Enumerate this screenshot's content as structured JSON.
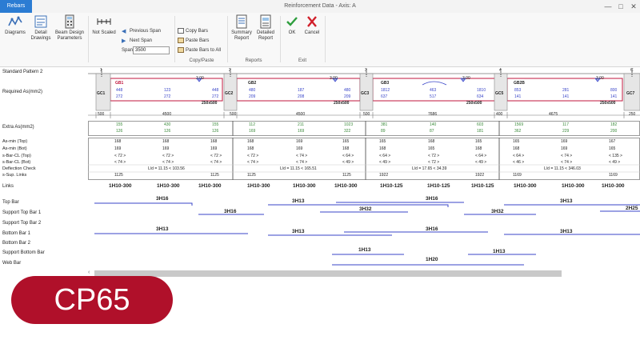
{
  "window": {
    "title": "Reinforcement Data - Axis: A",
    "tab": "Rebars",
    "controls": [
      "—",
      "□",
      "✕"
    ]
  },
  "ribbon": {
    "diagrams": "Diagrams",
    "detail_drawings_1": "Detail",
    "detail_drawings_2": "Drawings",
    "beam_params_1": "Beam Design",
    "beam_params_2": "Parameters",
    "not_scaled": "Not Scaled",
    "previous_span": "Previous Span",
    "next_span": "Next Span",
    "span_label": "Span",
    "span_value": "3500",
    "copy_bars": "Copy Bars",
    "paste_bars": "Paste Bars",
    "paste_bars_all": "Paste Bars to All",
    "copy_paste_group": "Copy/Paste",
    "summary_1": "Summary",
    "summary_2": "Report",
    "detailed_1": "Detailed",
    "detailed_2": "Report",
    "reports_group": "Reports",
    "ok": "OK",
    "cancel": "Cancel",
    "exit_group": "Exit"
  },
  "labels": {
    "pattern": "Standard Pattern 2",
    "required_as": "Required As(mm2)",
    "extra_as": "Extra As(mm2)",
    "as_min_top": "As-min (Top)",
    "as_min_bot": "As-min (Bot)",
    "sbar_top": "s-Bar-CL (Top)",
    "sbar_bot": "s-Bar-CL (Bot)",
    "deflection": "Deflection Check",
    "sup_links": "s-Sup. Links",
    "links": "Links",
    "top_bar": "Top Bar",
    "support_top_1": "Support Top Bar 1",
    "support_top_2": "Support Top Bar 2",
    "bottom_bar_1": "Bottom Bar 1",
    "bottom_bar_2": "Bottom Bar 2",
    "support_bottom": "Support Bottom Bar",
    "web_bar": "Web Bar"
  },
  "gridlines": [
    "1",
    "2",
    "3",
    "4",
    "C"
  ],
  "beams": [
    "GB1",
    "GB2",
    "GB3",
    "GB2B"
  ],
  "columns": [
    "GC1",
    "GC2",
    "GC3",
    "GC5",
    "GC7"
  ],
  "sections": [
    "250x500",
    "250x500",
    "250x500",
    "250x500"
  ],
  "dims": [
    "500",
    "4500",
    "500",
    "4500",
    "500",
    "7686",
    "400",
    "4675",
    "250"
  ],
  "load_marks": [
    "3.00",
    "3.00",
    "3.00",
    "3.00"
  ],
  "req_top": [
    "448",
    "123",
    "448",
    "480",
    "187",
    "480",
    "1812",
    "463",
    "1810",
    "853",
    "281",
    "800"
  ],
  "req_bot": [
    "272",
    "272",
    "272",
    "209",
    "208",
    "209",
    "637",
    "517",
    "634",
    "141",
    "141",
    "141"
  ],
  "extra_top": [
    "155",
    "430",
    "155",
    "112",
    "211",
    "1023",
    "381",
    "140",
    "603",
    "1569",
    "117",
    "182"
  ],
  "extra_bot": [
    "126",
    "126",
    "126",
    "169",
    "169",
    "322",
    "89",
    "87",
    "181",
    "362",
    "229",
    "200"
  ],
  "asmin_top": [
    "168",
    "168",
    "168",
    "168",
    "169",
    "165",
    "165",
    "168",
    "165",
    "165",
    "169",
    "167"
  ],
  "asmin_bot": [
    "169",
    "169",
    "169",
    "168",
    "169",
    "168",
    "168",
    "165",
    "168",
    "168",
    "169",
    "165"
  ],
  "sbar_top": [
    "< 72 >",
    "< 72 >",
    "< 72 >",
    "< 72 >",
    "< 74 >",
    "< 64 >",
    "< 64 >",
    "< 72 >",
    "< 64 >",
    "< 64 >",
    "< 74 >",
    "< 135 >"
  ],
  "sbar_bot": [
    "< 74 >",
    "< 74 >",
    "< 74 >",
    "< 74 >",
    "< 74 >",
    "< 49 >",
    "< 49 >",
    "< 72 >",
    "< 49 >",
    "< 46 >",
    "< 74 >",
    "< 49 >"
  ],
  "deflection_vals": [
    "L/d = 11.15  < 103.56",
    "L/d = 11.15  < 165.51",
    "L/d = 17.65  < 34.39",
    "L/d = 11.15  < 346.03"
  ],
  "sup_links": [
    "1125",
    "1125",
    "1125",
    "1125",
    "1922",
    "1922",
    "1169",
    "1169"
  ],
  "links_vals": [
    "1H10-300",
    "1H10-300",
    "1H10-300",
    "1H10-300",
    "1H10-300",
    "1H10-300",
    "1H10-125",
    "1H10-125",
    "1H10-125",
    "1H10-300",
    "1H10-300",
    "1H10-300"
  ],
  "top_bars": [
    "3H16",
    "3H13",
    "3H16",
    "3H13"
  ],
  "support_top_1_bars": [
    "3H16",
    "3H32",
    "3H32",
    "2H25"
  ],
  "bottom_bar_1_bars": [
    "3H13",
    "3H13",
    "3H16",
    "3H13"
  ],
  "support_bottom_bars": [
    "1H13",
    "1H13"
  ],
  "web_bars": [
    "1H20"
  ],
  "badge": "CP65",
  "colors": {
    "beam_red": "#c0143c",
    "bar_blue": "#3a46c9",
    "green_text": "#3a8a3a",
    "badge_red": "#b0102a",
    "tab_blue": "#2b7cd3"
  }
}
